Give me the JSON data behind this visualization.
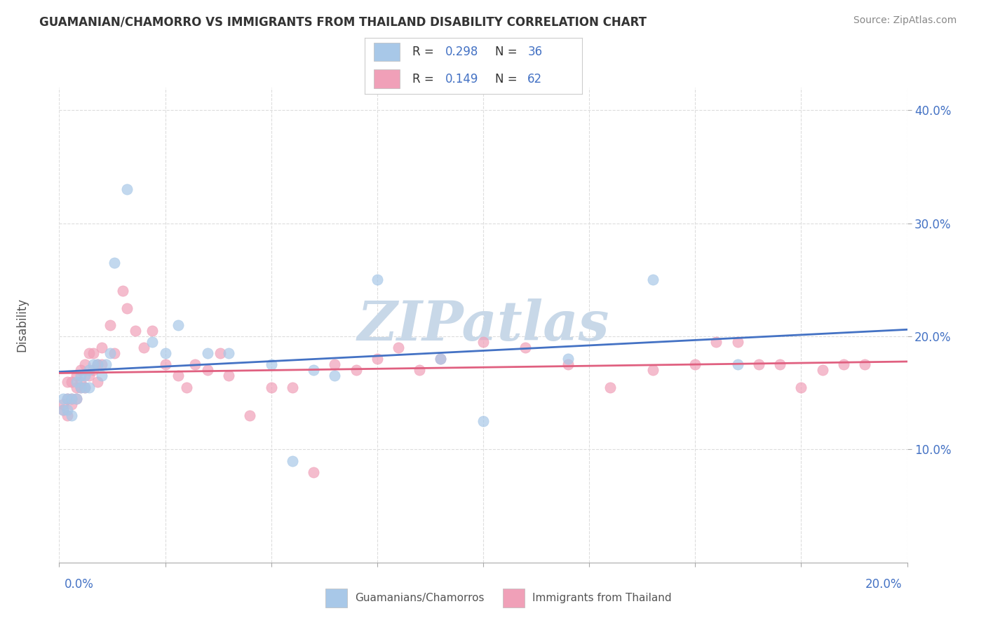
{
  "title": "GUAMANIAN/CHAMORRO VS IMMIGRANTS FROM THAILAND DISABILITY CORRELATION CHART",
  "source": "Source: ZipAtlas.com",
  "ylabel": "Disability",
  "blue_R": 0.298,
  "blue_N": 36,
  "pink_R": 0.149,
  "pink_N": 62,
  "blue_label": "Guamanians/Chamorros",
  "pink_label": "Immigrants from Thailand",
  "blue_color": "#A8C8E8",
  "pink_color": "#F0A0B8",
  "blue_line_color": "#4472C4",
  "pink_line_color": "#E06080",
  "bg_color": "#FFFFFF",
  "grid_color": "#DDDDDD",
  "watermark": "ZIPatlas",
  "watermark_color": "#C8D8E8",
  "blue_dots_x": [
    0.001,
    0.001,
    0.002,
    0.002,
    0.003,
    0.003,
    0.004,
    0.004,
    0.005,
    0.005,
    0.006,
    0.006,
    0.007,
    0.007,
    0.008,
    0.009,
    0.01,
    0.011,
    0.012,
    0.013,
    0.016,
    0.022,
    0.025,
    0.028,
    0.035,
    0.04,
    0.05,
    0.055,
    0.06,
    0.065,
    0.075,
    0.09,
    0.1,
    0.12,
    0.14,
    0.16
  ],
  "blue_dots_y": [
    0.135,
    0.145,
    0.135,
    0.145,
    0.13,
    0.145,
    0.145,
    0.16,
    0.155,
    0.165,
    0.155,
    0.165,
    0.17,
    0.155,
    0.175,
    0.175,
    0.165,
    0.175,
    0.185,
    0.265,
    0.33,
    0.195,
    0.185,
    0.21,
    0.185,
    0.185,
    0.175,
    0.09,
    0.17,
    0.165,
    0.25,
    0.18,
    0.125,
    0.18,
    0.25,
    0.175
  ],
  "pink_dots_x": [
    0.001,
    0.001,
    0.002,
    0.002,
    0.002,
    0.003,
    0.003,
    0.003,
    0.004,
    0.004,
    0.004,
    0.005,
    0.005,
    0.005,
    0.006,
    0.006,
    0.007,
    0.007,
    0.008,
    0.008,
    0.009,
    0.009,
    0.01,
    0.01,
    0.012,
    0.013,
    0.015,
    0.016,
    0.018,
    0.02,
    0.022,
    0.025,
    0.028,
    0.03,
    0.032,
    0.035,
    0.038,
    0.04,
    0.045,
    0.05,
    0.055,
    0.06,
    0.065,
    0.07,
    0.075,
    0.08,
    0.085,
    0.09,
    0.1,
    0.11,
    0.12,
    0.13,
    0.14,
    0.15,
    0.155,
    0.16,
    0.165,
    0.17,
    0.175,
    0.18,
    0.185,
    0.19
  ],
  "pink_dots_y": [
    0.135,
    0.14,
    0.13,
    0.145,
    0.16,
    0.14,
    0.145,
    0.16,
    0.145,
    0.155,
    0.165,
    0.16,
    0.155,
    0.17,
    0.155,
    0.175,
    0.165,
    0.185,
    0.17,
    0.185,
    0.16,
    0.175,
    0.175,
    0.19,
    0.21,
    0.185,
    0.24,
    0.225,
    0.205,
    0.19,
    0.205,
    0.175,
    0.165,
    0.155,
    0.175,
    0.17,
    0.185,
    0.165,
    0.13,
    0.155,
    0.155,
    0.08,
    0.175,
    0.17,
    0.18,
    0.19,
    0.17,
    0.18,
    0.195,
    0.19,
    0.175,
    0.155,
    0.17,
    0.175,
    0.195,
    0.195,
    0.175,
    0.175,
    0.155,
    0.17,
    0.175,
    0.175
  ],
  "xlim": [
    0.0,
    0.2
  ],
  "ylim": [
    0.0,
    0.42
  ],
  "yticks": [
    0.1,
    0.2,
    0.3,
    0.4
  ],
  "ytick_labels": [
    "10.0%",
    "20.0%",
    "30.0%",
    "40.0%"
  ],
  "title_color": "#333333",
  "axis_label_color": "#4472C4",
  "legend_border_color": "#CCCCCC",
  "text_color_rn": "#4472C4",
  "text_color_label": "#333333"
}
